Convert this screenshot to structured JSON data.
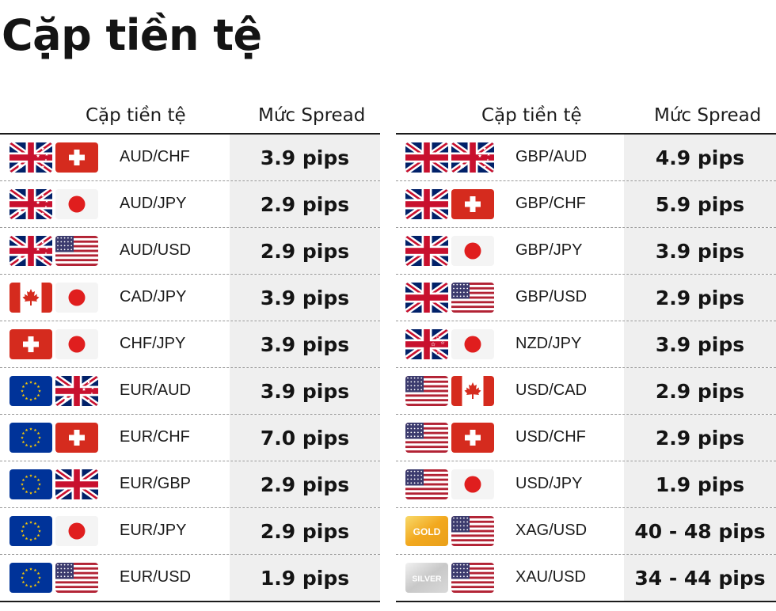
{
  "title": "Cặp tiền tệ",
  "columns": {
    "pair": "Cặp tiền tệ",
    "spread": "Mức Spread"
  },
  "tables": [
    {
      "rows": [
        {
          "flags": [
            "au",
            "ch"
          ],
          "pair": "AUD/CHF",
          "spread": "3.9 pips"
        },
        {
          "flags": [
            "au",
            "jp"
          ],
          "pair": "AUD/JPY",
          "spread": "2.9 pips"
        },
        {
          "flags": [
            "au",
            "us"
          ],
          "pair": "AUD/USD",
          "spread": "2.9 pips"
        },
        {
          "flags": [
            "ca",
            "jp"
          ],
          "pair": "CAD/JPY",
          "spread": "3.9 pips"
        },
        {
          "flags": [
            "ch",
            "jp"
          ],
          "pair": "CHF/JPY",
          "spread": "3.9 pips"
        },
        {
          "flags": [
            "eu",
            "au"
          ],
          "pair": "EUR/AUD",
          "spread": "3.9 pips"
        },
        {
          "flags": [
            "eu",
            "ch"
          ],
          "pair": "EUR/CHF",
          "spread": "7.0 pips"
        },
        {
          "flags": [
            "eu",
            "gb"
          ],
          "pair": "EUR/GBP",
          "spread": "2.9 pips"
        },
        {
          "flags": [
            "eu",
            "jp"
          ],
          "pair": "EUR/JPY",
          "spread": "2.9 pips"
        },
        {
          "flags": [
            "eu",
            "us"
          ],
          "pair": "EUR/USD",
          "spread": "1.9 pips"
        }
      ]
    },
    {
      "rows": [
        {
          "flags": [
            "gb",
            "au"
          ],
          "pair": "GBP/AUD",
          "spread": "4.9 pips"
        },
        {
          "flags": [
            "gb",
            "ch"
          ],
          "pair": "GBP/CHF",
          "spread": "5.9 pips"
        },
        {
          "flags": [
            "gb",
            "jp"
          ],
          "pair": "GBP/JPY",
          "spread": "3.9 pips"
        },
        {
          "flags": [
            "gb",
            "us"
          ],
          "pair": "GBP/USD",
          "spread": "2.9 pips"
        },
        {
          "flags": [
            "nz",
            "jp"
          ],
          "pair": "NZD/JPY",
          "spread": "3.9 pips"
        },
        {
          "flags": [
            "us",
            "ca"
          ],
          "pair": "USD/CAD",
          "spread": "2.9 pips"
        },
        {
          "flags": [
            "us",
            "ch"
          ],
          "pair": "USD/CHF",
          "spread": "2.9 pips"
        },
        {
          "flags": [
            "us",
            "jp"
          ],
          "pair": "USD/JPY",
          "spread": "1.9 pips"
        },
        {
          "flags": [
            "gold",
            "us"
          ],
          "pair": "XAG/USD",
          "spread": "40 - 48 pips"
        },
        {
          "flags": [
            "silver",
            "us"
          ],
          "pair": "XAU/USD",
          "spread": "34 - 44 pips"
        }
      ]
    }
  ],
  "badges": {
    "gold": "GOLD",
    "silver": "SILVER"
  },
  "flag_names": {
    "au": "australia-flag-icon",
    "ch": "switzerland-flag-icon",
    "jp": "japan-flag-icon",
    "us": "usa-flag-icon",
    "ca": "canada-flag-icon",
    "eu": "eu-flag-icon",
    "gb": "uk-flag-icon",
    "nz": "new-zealand-flag-icon",
    "gold": "gold-badge-icon",
    "silver": "silver-badge-icon"
  },
  "colors": {
    "red": "#d52b1e",
    "navy": "#012169",
    "eu_blue": "#003399",
    "eu_star": "#ffcc00",
    "us_red": "#b22234",
    "us_blue": "#3c3b6e",
    "spread_bg": "#efefef"
  }
}
